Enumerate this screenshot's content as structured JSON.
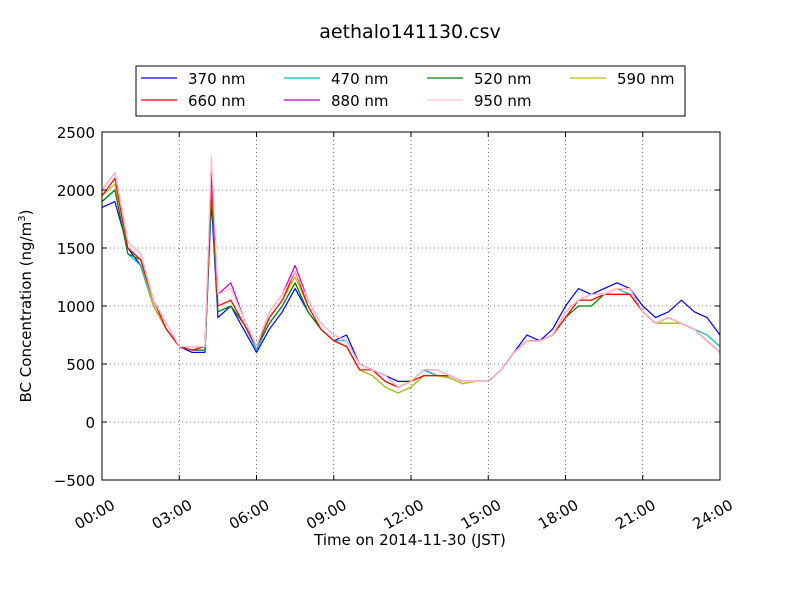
{
  "chart_data": {
    "type": "line",
    "title": "aethalo141130.csv",
    "xlabel": "Time on 2014-11-30 (JST)",
    "ylabel_main": "BC Concentration (ng/m",
    "ylabel_sup": "3",
    "ylabel_close": ")",
    "xlim": [
      0,
      24
    ],
    "ylim": [
      -500,
      2500
    ],
    "x_ticks": [
      0,
      3,
      6,
      9,
      12,
      15,
      18,
      21,
      24
    ],
    "x_tick_labels": [
      "00:00",
      "03:00",
      "06:00",
      "09:00",
      "12:00",
      "15:00",
      "18:00",
      "21:00",
      "24:00"
    ],
    "y_ticks": [
      -500,
      0,
      500,
      1000,
      1500,
      2000,
      2500
    ],
    "y_tick_labels": [
      "−500",
      "0",
      "500",
      "1000",
      "1500",
      "2000",
      "2500"
    ],
    "grid": true,
    "legend_position": "top-center-outside",
    "x": [
      0,
      0.5,
      1,
      1.5,
      2,
      2.5,
      3,
      3.5,
      4,
      4.25,
      4.5,
      5,
      5.5,
      6,
      6.5,
      7,
      7.5,
      8,
      8.5,
      9,
      9.5,
      10,
      10.5,
      11,
      11.5,
      12,
      12.5,
      13,
      13.5,
      14,
      14.5,
      15,
      15.5,
      16,
      16.5,
      17,
      17.5,
      18,
      18.5,
      19,
      19.5,
      20,
      20.5,
      21,
      21.5,
      22,
      22.5,
      23,
      23.5,
      24
    ],
    "series": [
      {
        "name": "370 nm",
        "color": "#0000ff",
        "values": [
          1850,
          1900,
          1500,
          1350,
          1000,
          800,
          650,
          600,
          600,
          1900,
          900,
          1000,
          800,
          600,
          800,
          950,
          1150,
          950,
          800,
          700,
          750,
          500,
          450,
          400,
          350,
          350,
          450,
          400,
          400,
          350,
          350,
          350,
          450,
          600,
          750,
          700,
          800,
          1000,
          1150,
          1100,
          1150,
          1200,
          1150,
          1000,
          900,
          950,
          1050,
          950,
          900,
          750
        ]
      },
      {
        "name": "470 nm",
        "color": "#00bfbf",
        "values": [
          1900,
          2000,
          1450,
          1350,
          1000,
          800,
          650,
          620,
          620,
          2000,
          950,
          1000,
          850,
          620,
          850,
          1000,
          1200,
          950,
          800,
          700,
          700,
          500,
          450,
          350,
          300,
          350,
          450,
          400,
          400,
          350,
          350,
          350,
          450,
          600,
          700,
          700,
          750,
          950,
          1050,
          1050,
          1100,
          1150,
          1100,
          950,
          850,
          900,
          850,
          800,
          750,
          650
        ]
      },
      {
        "name": "520 nm",
        "color": "#008000",
        "values": [
          1900,
          2000,
          1450,
          1400,
          1000,
          800,
          650,
          620,
          620,
          2000,
          950,
          1000,
          850,
          650,
          850,
          1000,
          1200,
          950,
          800,
          700,
          650,
          450,
          400,
          300,
          250,
          300,
          400,
          400,
          380,
          330,
          350,
          350,
          450,
          600,
          700,
          700,
          750,
          900,
          1000,
          1000,
          1100,
          1100,
          1100,
          950,
          850,
          850,
          850,
          800,
          700,
          600
        ]
      },
      {
        "name": "590 nm",
        "color": "#bfbf00",
        "values": [
          1950,
          2050,
          1500,
          1400,
          1000,
          800,
          650,
          620,
          650,
          2100,
          1000,
          1050,
          850,
          650,
          900,
          1050,
          1250,
          1000,
          800,
          700,
          650,
          450,
          400,
          300,
          250,
          300,
          400,
          400,
          380,
          330,
          350,
          350,
          450,
          600,
          700,
          700,
          750,
          900,
          1050,
          1050,
          1100,
          1100,
          1100,
          950,
          850,
          850,
          850,
          800,
          700,
          600
        ]
      },
      {
        "name": "660 nm",
        "color": "#ff0000",
        "values": [
          1950,
          2100,
          1500,
          1400,
          1050,
          800,
          650,
          620,
          650,
          2150,
          1000,
          1050,
          850,
          650,
          900,
          1050,
          1300,
          1000,
          800,
          700,
          650,
          450,
          450,
          350,
          300,
          350,
          400,
          400,
          400,
          350,
          350,
          350,
          450,
          600,
          700,
          700,
          750,
          900,
          1050,
          1050,
          1100,
          1100,
          1100,
          950,
          850,
          900,
          850,
          800,
          700,
          600
        ]
      },
      {
        "name": "880 nm",
        "color": "#bf00bf",
        "values": [
          2000,
          2150,
          1550,
          1450,
          1050,
          850,
          650,
          650,
          650,
          2250,
          1100,
          1200,
          900,
          650,
          950,
          1100,
          1350,
          1050,
          850,
          750,
          700,
          500,
          450,
          400,
          300,
          350,
          450,
          450,
          400,
          350,
          350,
          350,
          450,
          600,
          700,
          700,
          750,
          950,
          1050,
          1100,
          1100,
          1150,
          1150,
          950,
          850,
          900,
          850,
          800,
          700,
          600
        ]
      },
      {
        "name": "950 nm",
        "color": "#ffc0cb",
        "values": [
          2000,
          2150,
          1550,
          1450,
          1050,
          850,
          650,
          650,
          650,
          2300,
          1100,
          1150,
          900,
          650,
          950,
          1100,
          1300,
          1050,
          850,
          750,
          700,
          500,
          450,
          400,
          300,
          350,
          450,
          450,
          400,
          350,
          350,
          350,
          450,
          600,
          700,
          700,
          750,
          950,
          1050,
          1100,
          1100,
          1150,
          1150,
          950,
          850,
          900,
          850,
          800,
          700,
          600
        ]
      }
    ]
  }
}
